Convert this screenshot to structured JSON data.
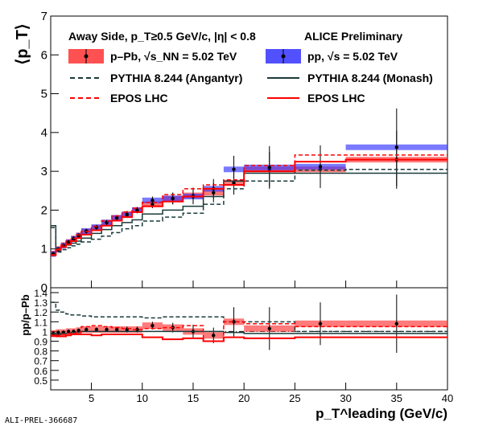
{
  "chart_data": [
    {
      "type": "line",
      "panel": "top",
      "ylabel": "⟨p_T⟩",
      "ylim": [
        0,
        7
      ],
      "xlim": [
        1,
        40
      ],
      "yticks": [
        "0",
        "1",
        "2",
        "3",
        "4",
        "5",
        "6",
        "7"
      ],
      "header_left": "Away Side, p_T≥0.5 GeV/c, |η| < 0.8",
      "header_right": "ALICE Preliminary",
      "legend": [
        {
          "label": "p–Pb, √s_NN = 5.02 TeV",
          "color": "#ff3333",
          "kind": "box"
        },
        {
          "label": "pp, √s = 5.02 TeV",
          "color": "#3333ff",
          "kind": "box"
        },
        {
          "label": "PYTHIA 8.244 (Angantyr)",
          "color": "#1a3a3a",
          "kind": "dashed"
        },
        {
          "label": "PYTHIA 8.244 (Monash)",
          "color": "#1a3a3a",
          "kind": "solid"
        },
        {
          "label": "EPOS LHC",
          "color": "#ff0000",
          "kind": "dashed"
        },
        {
          "label": "EPOS LHC",
          "color": "#ff0000",
          "kind": "solid"
        }
      ],
      "bin_edges": [
        1,
        1.5,
        2,
        2.5,
        3,
        3.5,
        4,
        5,
        6,
        7,
        8,
        9,
        10,
        12,
        14,
        16,
        18,
        20,
        25,
        30,
        40
      ],
      "series": [
        {
          "name": "p–Pb, √s_NN = 5.02 TeV",
          "color": "#ff3333",
          "values": [
            0.88,
            1.0,
            1.1,
            1.18,
            1.27,
            1.35,
            1.45,
            1.55,
            1.68,
            1.8,
            1.9,
            2.0,
            2.15,
            2.3,
            2.38,
            2.45,
            2.7,
            3.05,
            3.05,
            3.3
          ],
          "errors": [
            0.05,
            0.05,
            0.05,
            0.05,
            0.06,
            0.06,
            0.06,
            0.06,
            0.07,
            0.07,
            0.08,
            0.08,
            0.1,
            0.15,
            0.2,
            0.25,
            0.3,
            0.45,
            0.45,
            0.75
          ]
        },
        {
          "name": "pp, √s = 5.02 TeV",
          "color": "#3333ff",
          "values": [
            0.87,
            0.98,
            1.08,
            1.17,
            1.26,
            1.34,
            1.46,
            1.56,
            1.68,
            1.8,
            1.88,
            2.0,
            2.25,
            2.3,
            2.35,
            2.55,
            3.05,
            3.1,
            3.12,
            3.62
          ],
          "errors": [
            0.05,
            0.05,
            0.05,
            0.05,
            0.06,
            0.06,
            0.06,
            0.06,
            0.07,
            0.07,
            0.08,
            0.08,
            0.1,
            0.15,
            0.2,
            0.25,
            0.35,
            0.55,
            0.55,
            1.0
          ]
        },
        {
          "name": "PYTHIA 8.244 (Angantyr)",
          "color": "#1a3a3a",
          "dash": true,
          "values": [
            1.55,
            0.92,
            0.98,
            1.03,
            1.08,
            1.12,
            1.18,
            1.25,
            1.33,
            1.42,
            1.52,
            1.6,
            1.72,
            1.82,
            1.92,
            2.15,
            2.55,
            2.75,
            3.03,
            3.05
          ]
        },
        {
          "name": "PYTHIA 8.244 (Monash)",
          "color": "#1a3a3a",
          "dash": false,
          "values": [
            1.6,
            1.0,
            1.05,
            1.1,
            1.15,
            1.2,
            1.28,
            1.4,
            1.5,
            1.6,
            1.68,
            1.75,
            1.9,
            2.0,
            2.1,
            2.35,
            2.75,
            2.95,
            2.95,
            2.95
          ]
        },
        {
          "name": "EPOS LHC",
          "color": "#ff0000",
          "dash": true,
          "values": [
            0.85,
            1.0,
            1.1,
            1.2,
            1.27,
            1.36,
            1.45,
            1.58,
            1.72,
            1.85,
            1.95,
            2.05,
            2.2,
            2.4,
            2.55,
            2.65,
            2.78,
            3.15,
            3.42,
            3.42
          ]
        },
        {
          "name": "EPOS LHC",
          "color": "#ff0000",
          "dash": false,
          "values": [
            0.84,
            0.98,
            1.05,
            1.12,
            1.2,
            1.28,
            1.37,
            1.48,
            1.6,
            1.73,
            1.82,
            1.95,
            2.1,
            2.22,
            2.35,
            2.55,
            2.65,
            3.0,
            3.25,
            3.3
          ]
        }
      ]
    },
    {
      "type": "line",
      "panel": "bottom",
      "ylabel": "pp/p–Pb",
      "xlabel": "p_T^leading (GeV/c)",
      "ylim": [
        0.4,
        1.45
      ],
      "xlim": [
        1,
        40
      ],
      "yticks": [
        "0.5",
        "0.6",
        "0.7",
        "0.8",
        "0.9",
        "1",
        "1.1",
        "1.2",
        "1.3",
        "1.4"
      ],
      "xticks": [
        "5",
        "10",
        "15",
        "20",
        "25",
        "30",
        "35",
        "40"
      ],
      "reference_line": 1.0,
      "bin_edges": [
        1,
        1.5,
        2,
        2.5,
        3,
        3.5,
        4,
        5,
        6,
        7,
        8,
        9,
        10,
        12,
        14,
        16,
        18,
        20,
        25,
        30,
        40
      ],
      "series": [
        {
          "name": "p–Pb, √s_NN = 5.02 TeV",
          "color": "#ff3333",
          "values": [
            0.98,
            0.99,
            0.99,
            1.0,
            1.0,
            1.01,
            1.02,
            1.02,
            1.02,
            1.02,
            1.02,
            1.02,
            1.06,
            1.04,
            1.0,
            0.96,
            1.1,
            1.03,
            1.08,
            1.08
          ],
          "errors": [
            0.02,
            0.02,
            0.02,
            0.02,
            0.02,
            0.02,
            0.02,
            0.02,
            0.02,
            0.02,
            0.03,
            0.03,
            0.04,
            0.05,
            0.07,
            0.08,
            0.15,
            0.22,
            0.22,
            0.3
          ]
        },
        {
          "name": "PYTHIA 8.244 (Angantyr)",
          "color": "#1a3a3a",
          "dash": true,
          "values": [
            1.3,
            1.22,
            1.2,
            1.18,
            1.17,
            1.17,
            1.16,
            1.15,
            1.15,
            1.15,
            1.15,
            1.15,
            1.14,
            1.15,
            1.15,
            1.15,
            1.1,
            1.1,
            1.0,
            1.0
          ]
        },
        {
          "name": "PYTHIA 8.244 (Monash)",
          "color": "#1a3a3a",
          "dash": false,
          "values": [
            0.98,
            0.97,
            0.98,
            0.98,
            0.99,
            0.99,
            1.0,
            1.0,
            1.0,
            1.0,
            1.0,
            1.0,
            1.0,
            1.0,
            1.0,
            1.0,
            0.99,
            0.98,
            0.98,
            0.98
          ]
        },
        {
          "name": "EPOS LHC",
          "color": "#ff0000",
          "dash": true,
          "values": [
            0.95,
            0.96,
            0.97,
            0.98,
            0.98,
            0.99,
            1.05,
            1.06,
            1.05,
            1.04,
            1.03,
            1.02,
            1.03,
            1.04,
            1.06,
            0.9,
            1.1,
            1.08,
            1.05,
            1.05
          ]
        },
        {
          "name": "EPOS LHC",
          "color": "#ff0000",
          "dash": false,
          "values": [
            0.96,
            0.95,
            0.95,
            0.96,
            0.97,
            0.97,
            0.97,
            0.96,
            0.97,
            0.97,
            0.97,
            0.97,
            0.94,
            0.92,
            0.93,
            0.9,
            0.94,
            0.93,
            0.94,
            0.94
          ]
        }
      ]
    }
  ],
  "footer_id": "ALI-PREL-366687"
}
